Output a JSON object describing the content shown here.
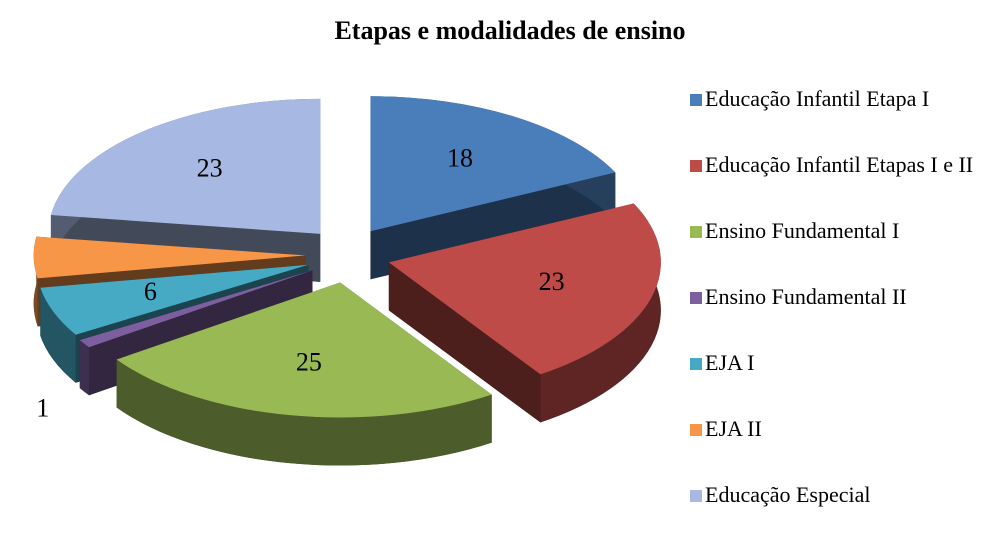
{
  "chart_data": {
    "type": "pie",
    "title": "Etapas e modalidades de ensino",
    "categories": [
      "Educação Infantil Etapa I",
      "Educação Infantil Etapas I e II",
      "Ensino Fundamental I",
      "Ensino Fundamental II",
      "EJA I",
      "EJA II",
      "Educação Especial"
    ],
    "values": [
      18,
      23,
      25,
      1,
      6,
      5,
      23
    ],
    "colors": [
      "#4a7ebb",
      "#be4b48",
      "#98b954",
      "#7d5fa0",
      "#46aac5",
      "#f79646",
      "#a7b9e2"
    ],
    "legend": "right"
  }
}
